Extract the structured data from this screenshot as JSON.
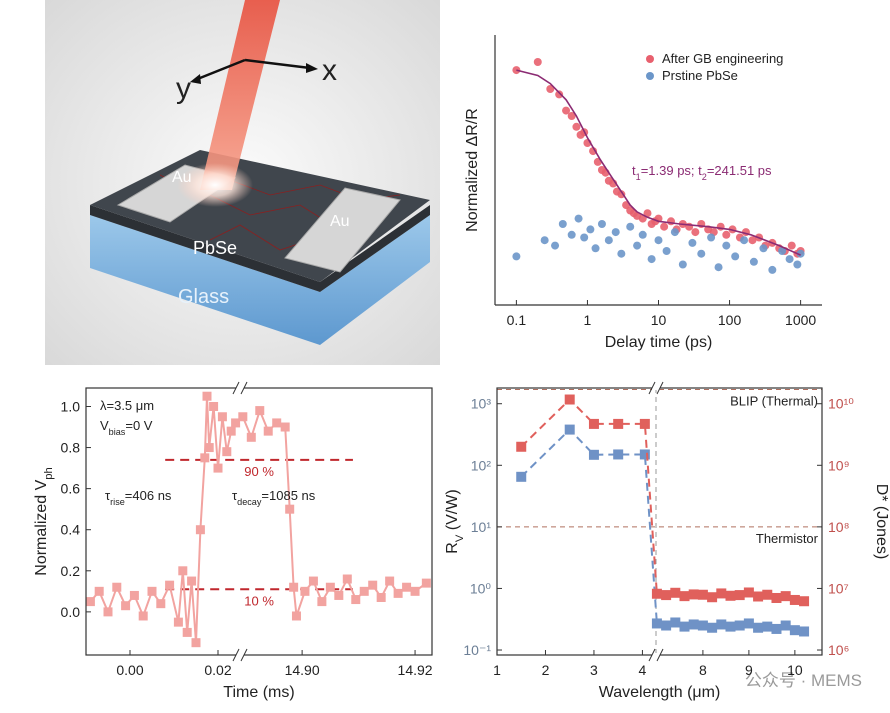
{
  "illustration": {
    "axis_y": "y",
    "axis_x": "x",
    "electrode_left": "Au",
    "electrode_right": "Au",
    "film": "PbSe",
    "substrate": "Glass"
  },
  "watermark": "公众号 · MEMS",
  "chart_data": [
    {
      "type": "scatter",
      "xlabel": "Delay time (ps)",
      "ylabel": "Normalized ΔR/R",
      "xscale": "log",
      "xlim": [
        0.05,
        2000
      ],
      "xticks": [
        0.1,
        1,
        10,
        100,
        1000
      ],
      "ylim": [
        0,
        1
      ],
      "legend": "upper right",
      "series": [
        {
          "name": "After GB engineering",
          "color": "#e8606e",
          "x": [
            0.1,
            0.2,
            0.3,
            0.4,
            0.5,
            0.6,
            0.7,
            0.8,
            0.9,
            1,
            1.2,
            1.4,
            1.6,
            1.8,
            2,
            2.3,
            2.6,
            3,
            3.5,
            4,
            4.5,
            5,
            6,
            7,
            8,
            9,
            10,
            12,
            15,
            18,
            22,
            27,
            33,
            40,
            50,
            60,
            75,
            90,
            110,
            140,
            170,
            210,
            260,
            320,
            400,
            500,
            600,
            750,
            900,
            1000
          ],
          "values": [
            0.87,
            0.9,
            0.8,
            0.78,
            0.72,
            0.7,
            0.66,
            0.63,
            0.64,
            0.6,
            0.57,
            0.53,
            0.5,
            0.49,
            0.46,
            0.45,
            0.42,
            0.41,
            0.37,
            0.35,
            0.34,
            0.33,
            0.32,
            0.34,
            0.3,
            0.31,
            0.32,
            0.29,
            0.31,
            0.28,
            0.3,
            0.29,
            0.27,
            0.3,
            0.28,
            0.27,
            0.29,
            0.26,
            0.28,
            0.25,
            0.27,
            0.24,
            0.25,
            0.22,
            0.23,
            0.21,
            0.2,
            0.22,
            0.19,
            0.2
          ]
        },
        {
          "name": "Prstine PbSe",
          "color": "#6b96c9",
          "x": [
            0.1,
            0.25,
            0.35,
            0.45,
            0.6,
            0.75,
            0.9,
            1.1,
            1.3,
            1.6,
            2,
            2.5,
            3,
            4,
            5,
            6,
            8,
            10,
            13,
            17,
            22,
            30,
            40,
            55,
            70,
            90,
            120,
            160,
            220,
            300,
            400,
            550,
            700,
            900,
            1000
          ],
          "values": [
            0.18,
            0.24,
            0.22,
            0.3,
            0.26,
            0.32,
            0.25,
            0.28,
            0.21,
            0.3,
            0.24,
            0.27,
            0.19,
            0.29,
            0.22,
            0.26,
            0.17,
            0.24,
            0.2,
            0.27,
            0.15,
            0.23,
            0.19,
            0.25,
            0.14,
            0.22,
            0.18,
            0.24,
            0.16,
            0.21,
            0.13,
            0.2,
            0.17,
            0.15,
            0.19
          ]
        }
      ],
      "fit": {
        "color": "#8b2b73",
        "x": [
          0.1,
          0.2,
          0.3,
          0.5,
          0.7,
          1,
          1.5,
          2,
          3,
          4,
          5,
          7,
          10,
          20,
          50,
          100,
          200,
          500,
          1000
        ],
        "values": [
          0.87,
          0.85,
          0.82,
          0.76,
          0.7,
          0.62,
          0.54,
          0.49,
          0.42,
          0.37,
          0.345,
          0.325,
          0.31,
          0.3,
          0.29,
          0.28,
          0.26,
          0.22,
          0.185
        ]
      },
      "annotation": [
        "t",
        "1",
        "=1.39 ps; t",
        "2",
        "=241.51 ps"
      ]
    },
    {
      "type": "line",
      "xlabel": "Time (ms)",
      "ylabel": [
        "Normalized V",
        "ph"
      ],
      "x_segments": [
        {
          "xlim": [
            -0.01,
            0.025
          ],
          "xticks": [
            {
              "value": 0,
              "label": "0.00"
            },
            {
              "value": 0.02,
              "label": "0.02"
            }
          ]
        },
        {
          "xlim": [
            14.889,
            14.923
          ],
          "xticks": [
            {
              "value": 14.9,
              "label": "14.90"
            },
            {
              "value": 14.92,
              "label": "14.92"
            }
          ]
        }
      ],
      "ylim": [
        -0.21,
        1.09
      ],
      "yticks": [
        {
          "value": 0,
          "label": "0.0"
        },
        0.2,
        0.4,
        0.6,
        0.8,
        {
          "value": 1,
          "label": "1.0"
        }
      ],
      "series": [
        {
          "color": "#f2a3a0",
          "x": [
            -0.009,
            -0.007,
            -0.005,
            -0.003,
            -0.001,
            0.001,
            0.003,
            0.005,
            0.007,
            0.009,
            0.011,
            0.012,
            0.013,
            0.014,
            0.015,
            0.016,
            0.017,
            0.0175,
            0.018,
            0.019,
            0.02,
            0.021,
            0.022,
            0.023,
            0.024,
            14.8895,
            14.891,
            14.8925,
            14.894,
            14.8955,
            14.897,
            14.8978,
            14.8985,
            14.899,
            14.9005,
            14.902,
            14.9035,
            14.905,
            14.9065,
            14.908,
            14.9095,
            14.911,
            14.9125,
            14.914,
            14.9155,
            14.917,
            14.9185,
            14.92,
            14.922
          ],
          "values": [
            0.05,
            0.1,
            0,
            0.12,
            0.03,
            0.08,
            -0.02,
            0.1,
            0.04,
            0.13,
            -0.05,
            0.2,
            -0.1,
            0.15,
            -0.15,
            0.4,
            0.75,
            1.05,
            0.8,
            1,
            0.7,
            0.95,
            0.78,
            0.88,
            0.92,
            0.95,
            0.85,
            0.98,
            0.88,
            0.92,
            0.9,
            0.5,
            0.12,
            -0.02,
            0.1,
            0.15,
            0.05,
            0.12,
            0.08,
            0.16,
            0.06,
            0.1,
            0.13,
            0.07,
            0.15,
            0.09,
            0.12,
            0.1,
            0.14
          ]
        }
      ],
      "levels": [
        {
          "value": 0.74,
          "label": "90 %",
          "x_from": 0.008,
          "x_to": 14.909,
          "color": "#c0272d"
        },
        {
          "value": 0.11,
          "label": "10 %",
          "x_from": 0.008,
          "x_to": 14.909,
          "color": "#c0272d"
        }
      ],
      "annotations": [
        [
          "λ=3.5 μm"
        ],
        [
          "V",
          "bias",
          "=0 V"
        ],
        [
          "τ",
          "rise",
          "=406 ns"
        ],
        [
          "τ",
          "decay",
          "=1085 ns"
        ]
      ]
    },
    {
      "type": "line",
      "xlabel": "Wavelength (μm)",
      "ylabel": [
        "R",
        "V",
        " (V/W)"
      ],
      "y2label": "D* (Jones)",
      "yscale": "log",
      "y2scale": "log",
      "line_style": "dashed",
      "x_segments": [
        {
          "xlim": [
            1,
            4.28
          ],
          "xticks": [
            1,
            2,
            3,
            4
          ]
        },
        {
          "xlim": [
            6.98,
            10.59
          ],
          "xticks": [
            8,
            9,
            10
          ]
        }
      ],
      "ylim": [
        0.083,
        1800
      ],
      "yticks": [
        {
          "value": 0.1,
          "label": "10⁻¹"
        },
        {
          "value": 1,
          "label": "10⁰"
        },
        {
          "value": 10,
          "label": "10¹"
        },
        {
          "value": 100,
          "label": "10²"
        },
        {
          "value": 1000,
          "label": "10³"
        }
      ],
      "y2lim": [
        830000,
        18000000000
      ],
      "y2ticks": [
        {
          "value": 1000000,
          "label": "10⁶"
        },
        {
          "value": 10000000,
          "label": "10⁷"
        },
        {
          "value": 100000000,
          "label": "10⁸"
        },
        {
          "value": 1000000000,
          "label": "10⁹"
        },
        {
          "value": 10000000000,
          "label": "10¹⁰"
        }
      ],
      "series": [
        {
          "color": "#6f92c6",
          "x": [
            1.5,
            2.5,
            3,
            3.5,
            4.05,
            7,
            7.2,
            7.4,
            7.6,
            7.8,
            8,
            8.2,
            8.4,
            8.6,
            8.8,
            9,
            9.2,
            9.4,
            9.6,
            9.8,
            10,
            10.2
          ],
          "values": [
            65,
            380,
            148,
            150,
            150,
            0.27,
            0.25,
            0.28,
            0.24,
            0.26,
            0.25,
            0.23,
            0.26,
            0.24,
            0.25,
            0.27,
            0.23,
            0.24,
            0.22,
            0.25,
            0.21,
            0.2
          ]
        },
        {
          "color": "#e0605c",
          "axis": "y2",
          "x": [
            1.5,
            2.5,
            3,
            3.5,
            4.05,
            7,
            7.2,
            7.4,
            7.6,
            7.8,
            8,
            8.2,
            8.4,
            8.6,
            8.8,
            9,
            9.2,
            9.4,
            9.6,
            9.8,
            10,
            10.2
          ],
          "values": [
            2000000000,
            11700000000,
            4700000000,
            4700000000,
            4700000000,
            8200000,
            7800000,
            8500000,
            7500000,
            8000000,
            7900000,
            7200000,
            8300000,
            7600000,
            7800000,
            8600000,
            7400000,
            7900000,
            7000000,
            7500000,
            6500000,
            6200000
          ]
        }
      ],
      "reference_lines": [
        {
          "axis": "y2",
          "value": 17000000000,
          "label": "BLIP (Thermal)"
        },
        {
          "axis": "y2",
          "value": 100000000,
          "label": "Thermistor"
        }
      ]
    }
  ]
}
